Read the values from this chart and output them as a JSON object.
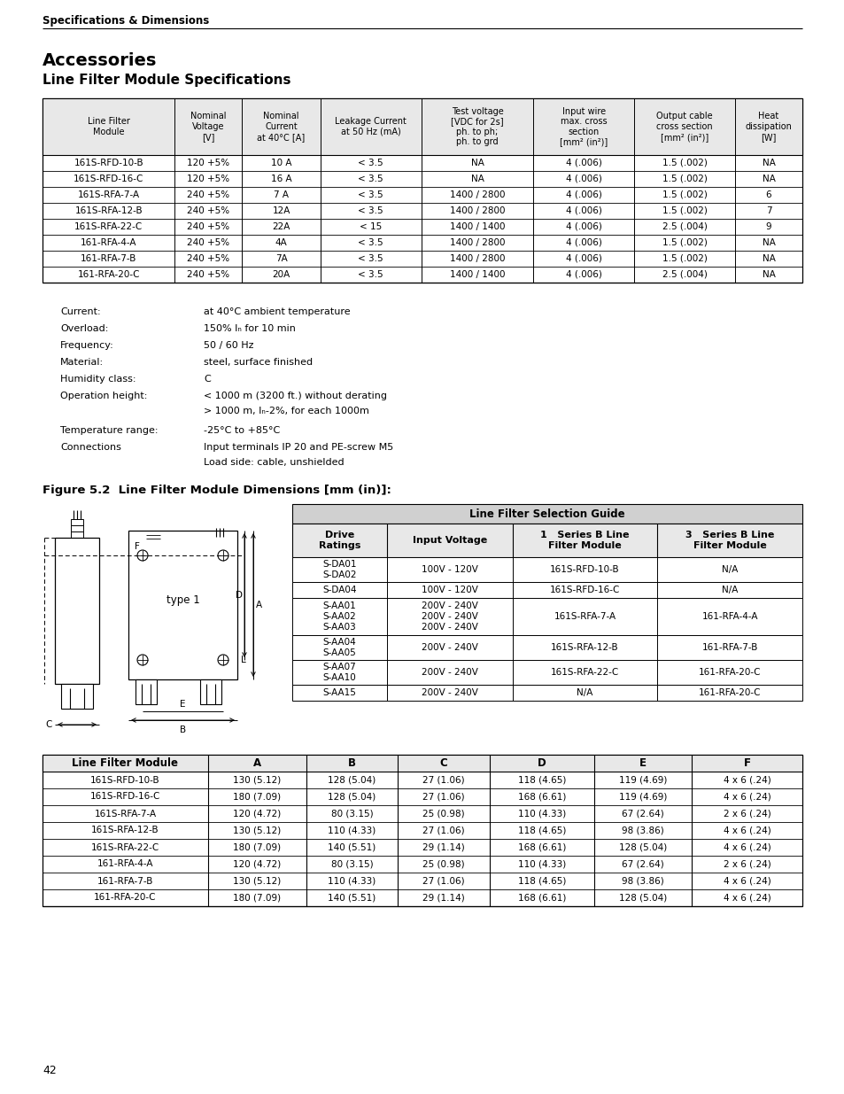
{
  "page_title": "Specifications & Dimensions",
  "section_title": "Accessories",
  "section_subtitle": "Line Filter Module Specifications",
  "main_table_headers": [
    "Line Filter\nModule",
    "Nominal\nVoltage\n[V]",
    "Nominal\nCurrent\nat 40°C [A]",
    "Leakage Current\nat 50 Hz (mA)",
    "Test voltage\n[VDC for 2s]\nph. to ph;\nph. to grd",
    "Input wire\nmax. cross\nsection\n[mm² (in²)]",
    "Output cable\ncross section\n[mm² (in²)]",
    "Heat\ndissipation\n[W]"
  ],
  "main_table_rows": [
    [
      "161S-RFD-10-B",
      "120 +5%",
      "10 A",
      "< 3.5",
      "NA",
      "4 (.006)",
      "1.5 (.002)",
      "NA"
    ],
    [
      "161S-RFD-16-C",
      "120 +5%",
      "16 A",
      "< 3.5",
      "NA",
      "4 (.006)",
      "1.5 (.002)",
      "NA"
    ],
    [
      "161S-RFA-7-A",
      "240 +5%",
      "7 A",
      "< 3.5",
      "1400 / 2800",
      "4 (.006)",
      "1.5 (.002)",
      "6"
    ],
    [
      "161S-RFA-12-B",
      "240 +5%",
      "12A",
      "< 3.5",
      "1400 / 2800",
      "4 (.006)",
      "1.5 (.002)",
      "7"
    ],
    [
      "161S-RFA-22-C",
      "240 +5%",
      "22A",
      "< 15",
      "1400 / 1400",
      "4 (.006)",
      "2.5 (.004)",
      "9"
    ],
    [
      "161-RFA-4-A",
      "240 +5%",
      "4A",
      "< 3.5",
      "1400 / 2800",
      "4 (.006)",
      "1.5 (.002)",
      "NA"
    ],
    [
      "161-RFA-7-B",
      "240 +5%",
      "7A",
      "< 3.5",
      "1400 / 2800",
      "4 (.006)",
      "1.5 (.002)",
      "NA"
    ],
    [
      "161-RFA-20-C",
      "240 +5%",
      "20A",
      "< 3.5",
      "1400 / 1400",
      "4 (.006)",
      "2.5 (.004)",
      "NA"
    ]
  ],
  "specs": [
    [
      "Current:",
      "at 40°C ambient temperature",
      1
    ],
    [
      "Overload:",
      "150% Iₙ for 10 min",
      1
    ],
    [
      "Frequency:",
      "50 / 60 Hz",
      1
    ],
    [
      "Material:",
      "steel, surface finished",
      1
    ],
    [
      "Humidity class:",
      "C",
      1
    ],
    [
      "Operation height:",
      "< 1000 m (3200 ft.) without derating\n> 1000 m, Iₙ-2%, for each 1000m",
      2
    ],
    [
      "Temperature range:",
      "-25°C to +85°C",
      1
    ],
    [
      "Connections",
      "Input terminals IP 20 and PE-screw M5\nLoad side: cable, unshielded",
      2
    ]
  ],
  "figure_title": "Figure 5.2  Line Filter Module Dimensions [mm (in)]:",
  "selection_table_title": "Line Filter Selection Guide",
  "selection_table_headers": [
    "Drive\nRatings",
    "Input Voltage",
    "1   Series B Line\nFilter Module",
    "3   Series B Line\nFilter Module"
  ],
  "selection_table_rows": [
    [
      "S-DA01\nS-DA02",
      "100V - 120V",
      "161S-RFD-10-B",
      "N/A"
    ],
    [
      "S-DA04",
      "100V - 120V",
      "161S-RFD-16-C",
      "N/A"
    ],
    [
      "S-AA01\nS-AA02\nS-AA03",
      "200V - 240V\n200V - 240V\n200V - 240V",
      "161S-RFA-7-A",
      "161-RFA-4-A"
    ],
    [
      "S-AA04\nS-AA05",
      "200V - 240V",
      "161S-RFA-12-B",
      "161-RFA-7-B"
    ],
    [
      "S-AA07\nS-AA10",
      "200V - 240V",
      "161S-RFA-22-C",
      "161-RFA-20-C"
    ],
    [
      "S-AA15",
      "200V - 240V",
      "N/A",
      "161-RFA-20-C"
    ]
  ],
  "dim_table_headers": [
    "Line Filter Module",
    "A",
    "B",
    "C",
    "D",
    "E",
    "F"
  ],
  "dim_table_rows": [
    [
      "161S-RFD-10-B",
      "130 (5.12)",
      "128 (5.04)",
      "27 (1.06)",
      "118 (4.65)",
      "119 (4.69)",
      "4 x 6 (.24)"
    ],
    [
      "161S-RFD-16-C",
      "180 (7.09)",
      "128 (5.04)",
      "27 (1.06)",
      "168 (6.61)",
      "119 (4.69)",
      "4 x 6 (.24)"
    ],
    [
      "161S-RFA-7-A",
      "120 (4.72)",
      "80 (3.15)",
      "25 (0.98)",
      "110 (4.33)",
      "67 (2.64)",
      "2 x 6 (.24)"
    ],
    [
      "161S-RFA-12-B",
      "130 (5.12)",
      "110 (4.33)",
      "27 (1.06)",
      "118 (4.65)",
      "98 (3.86)",
      "4 x 6 (.24)"
    ],
    [
      "161S-RFA-22-C",
      "180 (7.09)",
      "140 (5.51)",
      "29 (1.14)",
      "168 (6.61)",
      "128 (5.04)",
      "4 x 6 (.24)"
    ],
    [
      "161-RFA-4-A",
      "120 (4.72)",
      "80 (3.15)",
      "25 (0.98)",
      "110 (4.33)",
      "67 (2.64)",
      "2 x 6 (.24)"
    ],
    [
      "161-RFA-7-B",
      "130 (5.12)",
      "110 (4.33)",
      "27 (1.06)",
      "118 (4.65)",
      "98 (3.86)",
      "4 x 6 (.24)"
    ],
    [
      "161-RFA-20-C",
      "180 (7.09)",
      "140 (5.51)",
      "29 (1.14)",
      "168 (6.61)",
      "128 (5.04)",
      "4 x 6 (.24)"
    ]
  ],
  "page_number": "42"
}
